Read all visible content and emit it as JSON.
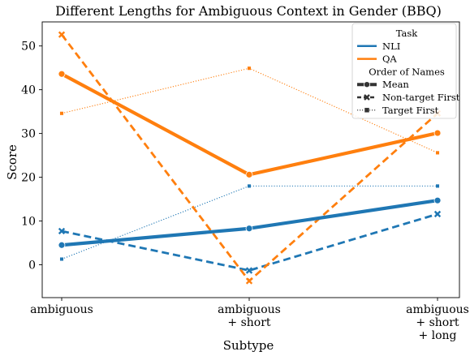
{
  "chart_data": {
    "type": "line",
    "title": "Different Lengths for Ambiguous Context in Gender (BBQ)",
    "xlabel": "Subtype",
    "ylabel": "Score",
    "categories": [
      [
        "ambiguous"
      ],
      [
        "ambiguous",
        "+ short"
      ],
      [
        "ambiguous",
        "+ short",
        "+ long"
      ]
    ],
    "ylim": [
      -7.5,
      55.5
    ],
    "yticks": [
      0,
      10,
      20,
      30,
      40,
      50
    ],
    "grid": false,
    "legend_position": "top-right",
    "legend": {
      "task_title": "Task",
      "task_entries": [
        "NLI",
        "QA"
      ],
      "order_title": "Order of Names",
      "order_entries": [
        "Mean",
        "Non-target First",
        "Target First"
      ]
    },
    "series": [
      {
        "name": "NLI",
        "order": "Mean",
        "color": "#1f77b4",
        "style": "solid-thick",
        "marker": "circle",
        "values": [
          4.5,
          8.3,
          14.7
        ]
      },
      {
        "name": "NLI",
        "order": "Non-target First",
        "color": "#1f77b4",
        "style": "dashed",
        "marker": "x",
        "values": [
          7.7,
          -1.3,
          11.6
        ]
      },
      {
        "name": "NLI",
        "order": "Target First",
        "color": "#1f77b4",
        "style": "dotted",
        "marker": "square",
        "values": [
          1.3,
          18.0,
          18.0
        ]
      },
      {
        "name": "QA",
        "order": "Mean",
        "color": "#ff7f0e",
        "style": "solid-thick",
        "marker": "circle",
        "values": [
          43.6,
          20.6,
          30.1
        ]
      },
      {
        "name": "QA",
        "order": "Non-target First",
        "color": "#ff7f0e",
        "style": "dashed",
        "marker": "x",
        "values": [
          52.6,
          -3.7,
          34.6
        ]
      },
      {
        "name": "QA",
        "order": "Target First",
        "color": "#ff7f0e",
        "style": "dotted",
        "marker": "square",
        "values": [
          34.6,
          44.9,
          25.6
        ]
      }
    ]
  }
}
